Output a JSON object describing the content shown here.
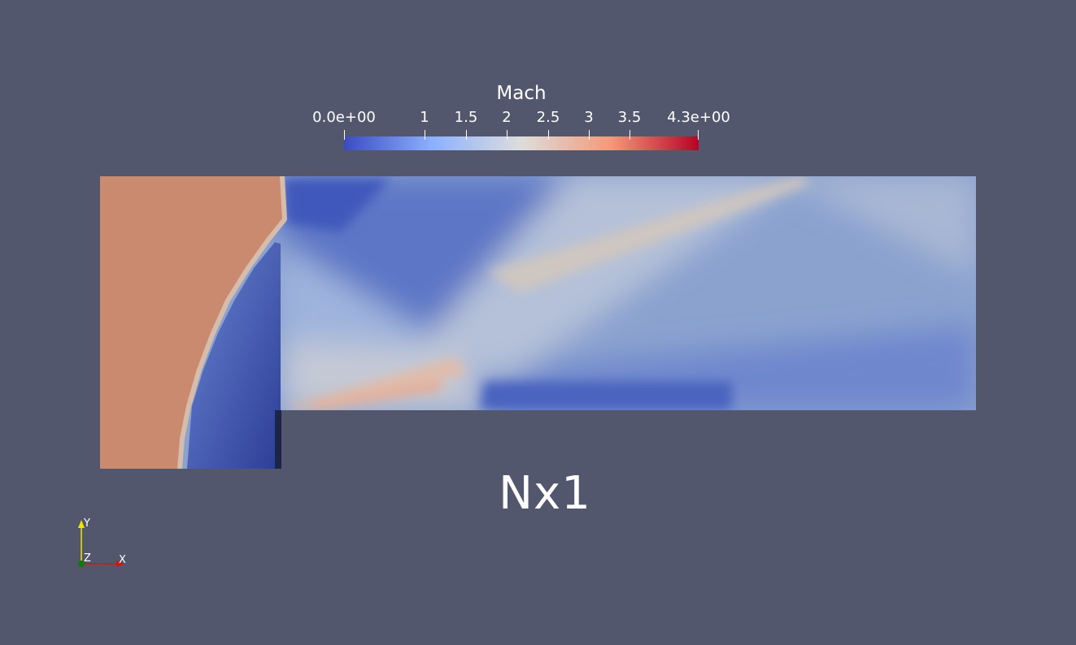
{
  "colorbar": {
    "title": "Mach",
    "min_label": "0.0e+00",
    "max_label": "4.3e+00",
    "ticks": [
      "1",
      "1.5",
      "2",
      "2.5",
      "3",
      "3.5"
    ],
    "range": [
      0,
      4.3
    ],
    "colormap": [
      "#3b4cc0",
      "#8db0fe",
      "#dddddd",
      "#f49a7b",
      "#b40426"
    ]
  },
  "case_label": "Nx1",
  "orientation_axes": {
    "y": "Y",
    "z": "Z",
    "x": "X"
  },
  "colors": {
    "background": "#52576e",
    "subsonic_region": "#c98a70",
    "axis_y": "#e8e800",
    "axis_x": "#e01010",
    "axis_z": "#0a7a0a"
  }
}
